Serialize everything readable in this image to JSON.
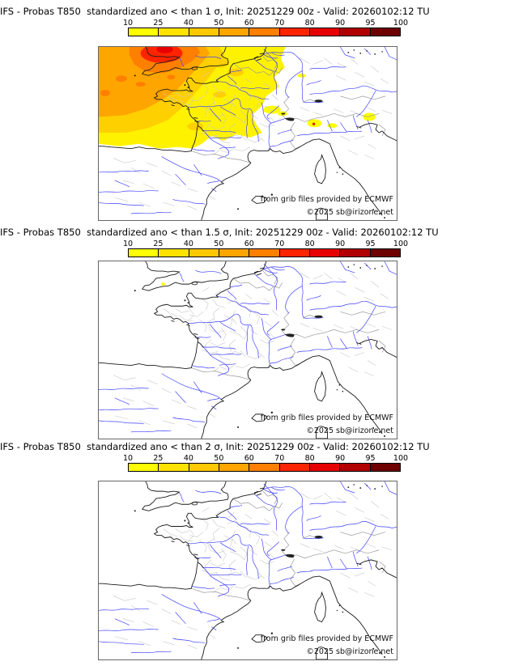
{
  "panels": [
    {
      "title": "IFS - Probas T850  standardized ano < than 1 σ, Init: 20251229 00z - Valid: 20260102:12 TU",
      "threshold_sigma": "1",
      "attribution_line1": "from grib files provided by ECMWF",
      "attribution_line2": "©2025 sb@irizone.net"
    },
    {
      "title": "IFS - Probas T850  standardized ano < than 1.5 σ, Init: 20251229 00z - Valid: 20260102:12 TU",
      "threshold_sigma": "1.5",
      "attribution_line1": "from grib files provided by ECMWF",
      "attribution_line2": "©2025 sb@irizone.net"
    },
    {
      "title": "IFS - Probas T850  standardized ano < than 2 σ, Init: 20251229 00z - Valid: 20260102:12 TU",
      "threshold_sigma": "2",
      "attribution_line1": "from grib files provided by ECMWF",
      "attribution_line2": "©2025 sb@irizone.net"
    }
  ],
  "colorbar": {
    "ticks": [
      "10",
      "25",
      "40",
      "50",
      "60",
      "70",
      "80",
      "90",
      "95",
      "100"
    ],
    "colors": [
      "#ffff00",
      "#ffe200",
      "#ffc800",
      "#ffa500",
      "#ff7f00",
      "#ff2400",
      "#e60000",
      "#b00000",
      "#6e0000"
    ]
  },
  "map_colors": {
    "coastline": "#1a1a1a",
    "rivers": "#4040ff",
    "country_borders": "#999999",
    "department_borders": "#c8c8c8"
  },
  "chart_data": [
    {
      "type": "heatmap",
      "title": "IFS - Probas T850 standardized ano < than 1 σ",
      "init": "20251229 00z",
      "valid": "20260102:12 TU",
      "units": "probability (%)",
      "scale_ticks": [
        10,
        25,
        40,
        50,
        60,
        70,
        80,
        90,
        95,
        100
      ],
      "scale_colors": [
        "#ffff00",
        "#ffe200",
        "#ffc800",
        "#ffa500",
        "#ff7f00",
        "#ff2400",
        "#e60000",
        "#b00000",
        "#6e0000"
      ],
      "legend_position": "top",
      "regions": [
        {
          "area": "Wales / Bristol Channel (map top-left)",
          "probability_pct": "70-90"
        },
        {
          "area": "SW England, western English Channel",
          "probability_pct": "60-70"
        },
        {
          "area": "Brittany, Channel coasts, NW France, near Atlantic",
          "probability_pct": "40-60"
        },
        {
          "area": "Northern and central France east to Belgium/Lorraine, Aquitaine / Bay of Biscay",
          "probability_pct": "10-40"
        },
        {
          "area": "Scattered patches: Jura/Switzerland, Savoie (small red core), Po area, Slovenia border",
          "probability_pct": "10-25"
        },
        {
          "area": "Rest of domain (E France, Spain, Italy, Germany)",
          "probability_pct": "<10"
        }
      ]
    },
    {
      "type": "heatmap",
      "title": "IFS - Probas T850 standardized ano < than 1.5 σ",
      "init": "20251229 00z",
      "valid": "20260102:12 TU",
      "units": "probability (%)",
      "scale_ticks": [
        10,
        25,
        40,
        50,
        60,
        70,
        80,
        90,
        95,
        100
      ],
      "scale_colors": [
        "#ffff00",
        "#ffe200",
        "#ffc800",
        "#ffa500",
        "#ff7f00",
        "#ff2400",
        "#e60000",
        "#b00000",
        "#6e0000"
      ],
      "legend_position": "top",
      "regions": [
        {
          "area": "Tiny spot over Devon (SW England)",
          "probability_pct": "10-25"
        },
        {
          "area": "Rest of domain",
          "probability_pct": "<10"
        }
      ]
    },
    {
      "type": "heatmap",
      "title": "IFS - Probas T850 standardized ano < than 2 σ",
      "init": "20251229 00z",
      "valid": "20260102:12 TU",
      "units": "probability (%)",
      "scale_ticks": [
        10,
        25,
        40,
        50,
        60,
        70,
        80,
        90,
        95,
        100
      ],
      "scale_colors": [
        "#ffff00",
        "#ffe200",
        "#ffc800",
        "#ffa500",
        "#ff7f00",
        "#ff2400",
        "#e60000",
        "#b00000",
        "#6e0000"
      ],
      "legend_position": "top",
      "regions": [
        {
          "area": "Entire domain",
          "probability_pct": "<10"
        }
      ]
    }
  ]
}
